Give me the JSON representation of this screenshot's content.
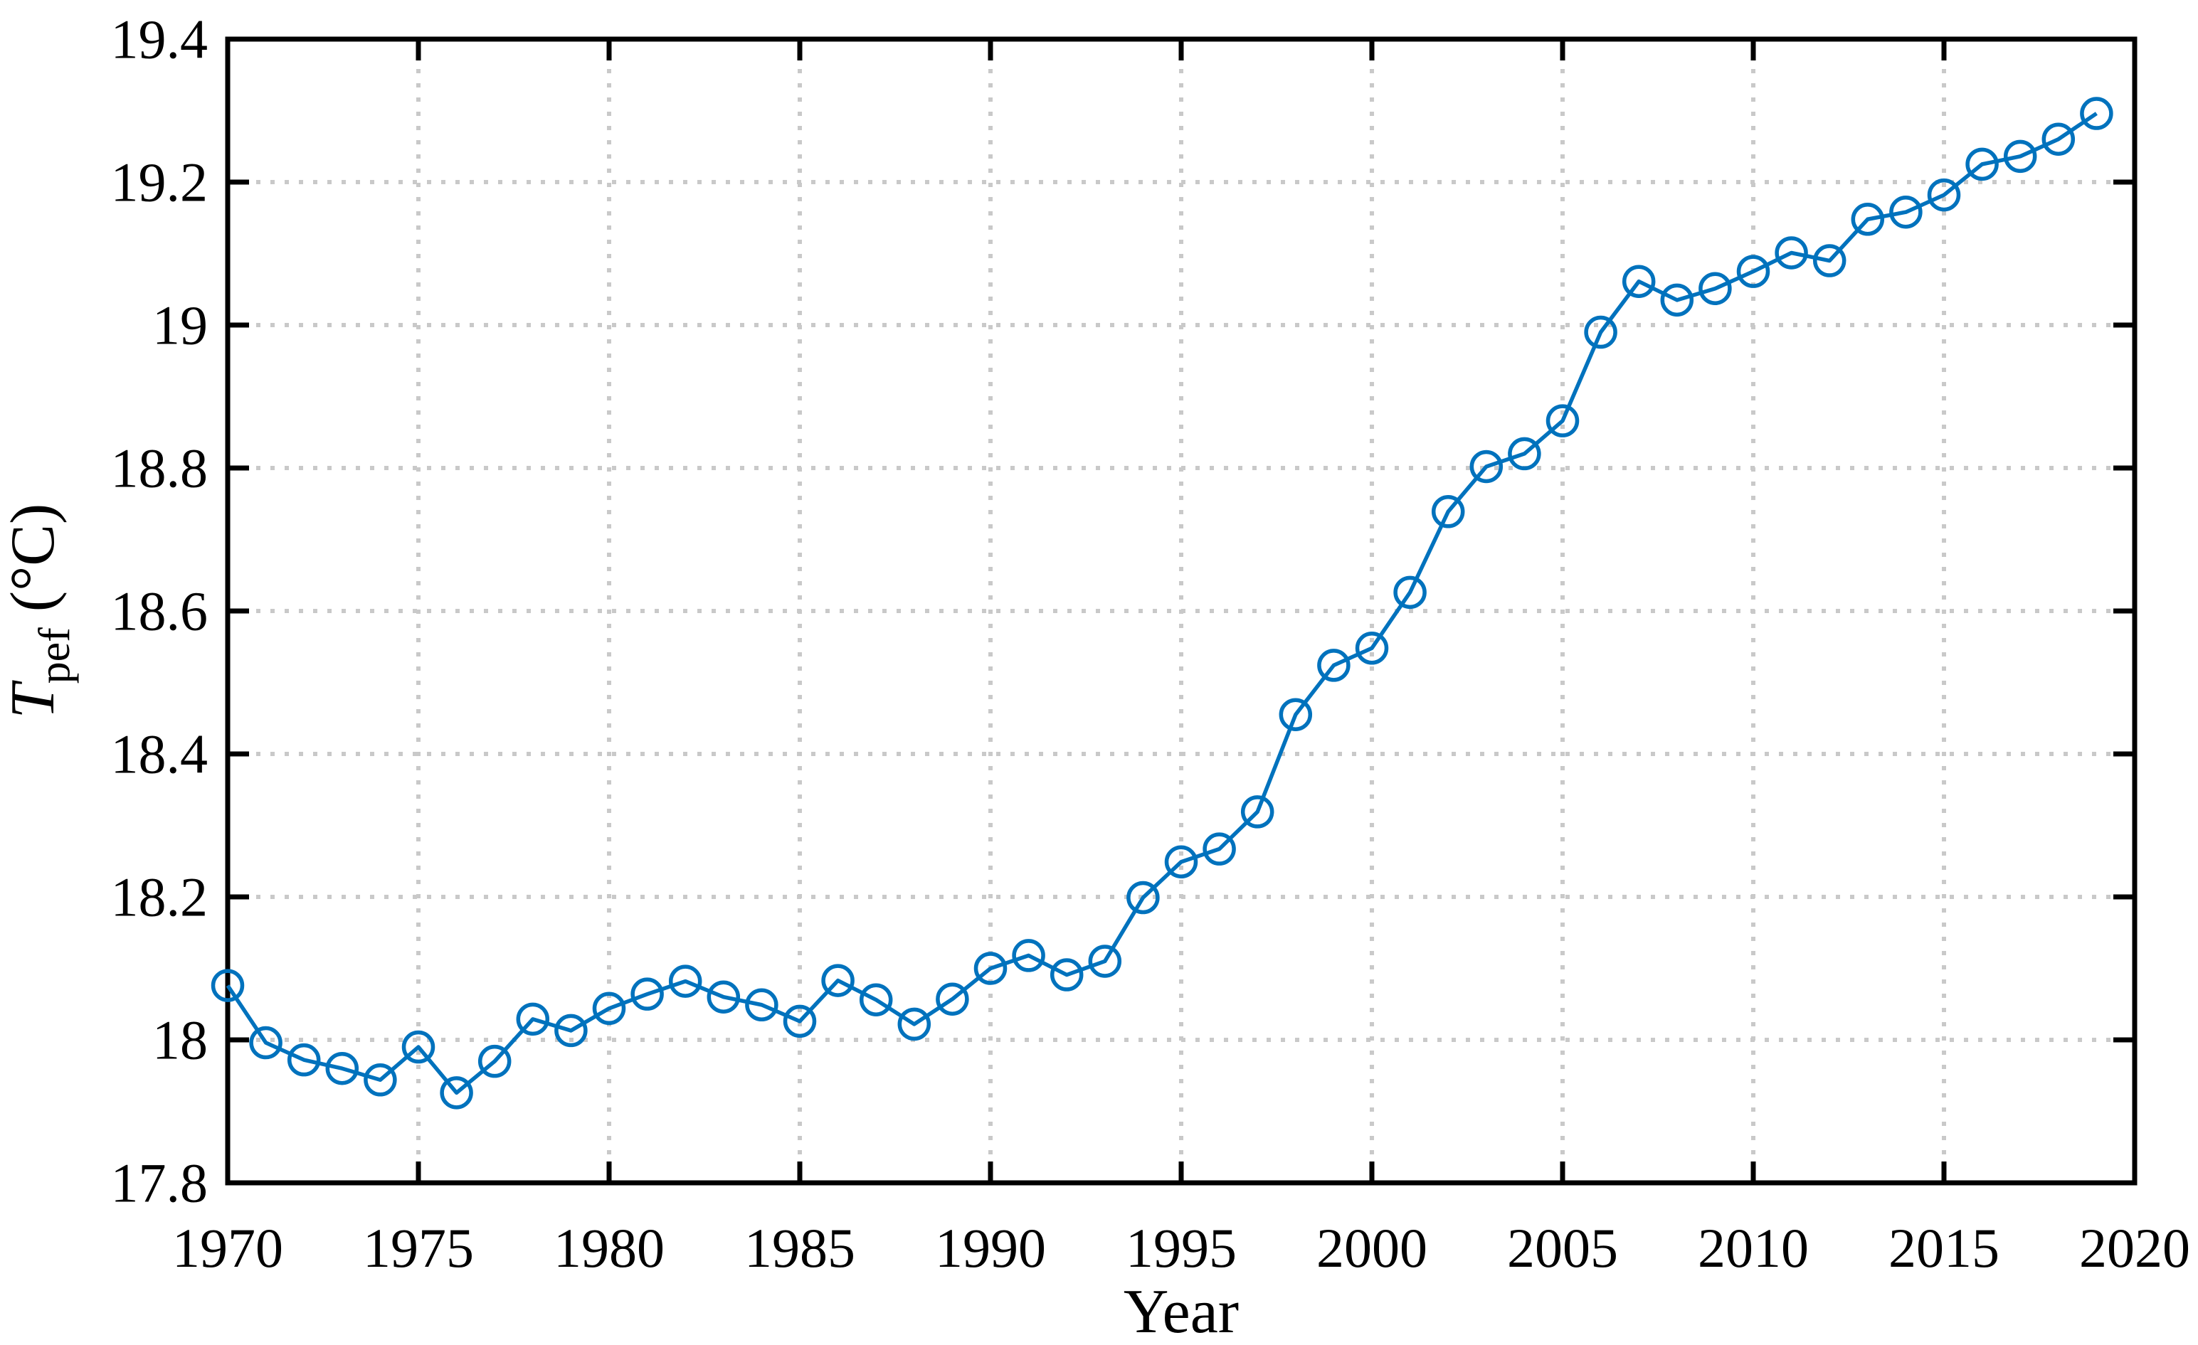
{
  "figure": {
    "background": "#ffffff",
    "xlabel": "Year",
    "ylabel_main": "T",
    "ylabel_sub": "pef",
    "ylabel_rest": " (°C)"
  },
  "chart_data": {
    "type": "line",
    "title": "",
    "xlabel": "Year",
    "ylabel": "T_pef (°C)",
    "grid": "dotted-both",
    "legend": "none",
    "line_color": "#0072BD",
    "grid_color": "#c9c9c9",
    "axis_color": "#000000",
    "marker": "open-circle",
    "xlim": [
      1970,
      2020
    ],
    "ylim": [
      17.8,
      19.4
    ],
    "xticks": [
      1970,
      1975,
      1980,
      1985,
      1990,
      1995,
      2000,
      2005,
      2010,
      2015,
      2020
    ],
    "xtick_labels": [
      "1970",
      "1975",
      "1980",
      "1985",
      "1990",
      "1995",
      "2000",
      "2005",
      "2010",
      "2015",
      "2020"
    ],
    "yticks": [
      17.8,
      18.0,
      18.2,
      18.4,
      18.6,
      18.8,
      19.0,
      19.2,
      19.4
    ],
    "ytick_labels": [
      "17.8",
      "18",
      "18.2",
      "18.4",
      "18.6",
      "18.8",
      "19",
      "19.2",
      "19.4"
    ],
    "x": [
      1970,
      1971,
      1972,
      1973,
      1974,
      1975,
      1976,
      1977,
      1978,
      1979,
      1980,
      1981,
      1982,
      1983,
      1984,
      1985,
      1986,
      1987,
      1988,
      1989,
      1990,
      1991,
      1992,
      1993,
      1994,
      1995,
      1996,
      1997,
      1998,
      1999,
      2000,
      2001,
      2002,
      2003,
      2004,
      2005,
      2006,
      2007,
      2008,
      2009,
      2010,
      2011,
      2012,
      2013,
      2014,
      2015,
      2016,
      2017,
      2018,
      2019
    ],
    "series": [
      {
        "name": "T_pef",
        "values": [
          18.076,
          17.996,
          17.972,
          17.96,
          17.944,
          17.99,
          17.926,
          17.97,
          18.029,
          18.013,
          18.044,
          18.064,
          18.082,
          18.06,
          18.049,
          18.026,
          18.083,
          18.056,
          18.022,
          18.057,
          18.1,
          18.118,
          18.091,
          18.11,
          18.199,
          18.249,
          18.267,
          18.319,
          18.455,
          18.524,
          18.548,
          18.626,
          18.739,
          18.802,
          18.82,
          18.866,
          18.99,
          19.061,
          19.035,
          19.051,
          19.075,
          19.101,
          19.09,
          19.148,
          19.158,
          19.182,
          19.225,
          19.236,
          19.26,
          19.296
        ]
      }
    ]
  }
}
